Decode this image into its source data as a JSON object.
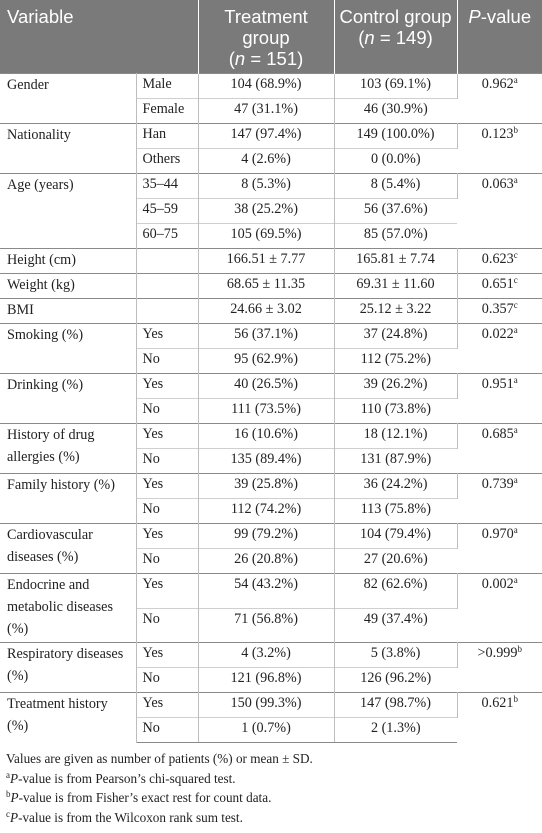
{
  "header": {
    "variable": "Variable",
    "treatment": "Treatment group",
    "treatment_n": "n",
    "treatment_count": " = 151)",
    "control": "Control group",
    "control_n": "n",
    "control_count": " = 149)",
    "pvalue_p": "P",
    "pvalue_rest": "-value"
  },
  "rows": [
    {
      "variable": "Gender",
      "sub": [
        {
          "label": "Male",
          "t": "104 (68.9%)",
          "c": "103 (69.1%)"
        },
        {
          "label": "Female",
          "t": "47 (31.1%)",
          "c": "46 (30.9%)"
        }
      ],
      "p": "0.962",
      "sup": "a"
    },
    {
      "variable": "Nationality",
      "sub": [
        {
          "label": "Han",
          "t": "147 (97.4%)",
          "c": "149 (100.0%)"
        },
        {
          "label": "Others",
          "t": "4 (2.6%)",
          "c": "0 (0.0%)"
        }
      ],
      "p": "0.123",
      "sup": "b"
    },
    {
      "variable": "Age (years)",
      "sub": [
        {
          "label": "35–44",
          "t": "8 (5.3%)",
          "c": "8 (5.4%)"
        },
        {
          "label": "45–59",
          "t": "38 (25.2%)",
          "c": "56 (37.6%)"
        },
        {
          "label": "60–75",
          "t": "105 (69.5%)",
          "c": "85 (57.0%)"
        }
      ],
      "p": "0.063",
      "sup": "a"
    },
    {
      "variable": "Height (cm)",
      "sub": [
        {
          "label": "",
          "t": "166.51 ± 7.77",
          "c": "165.81 ± 7.74"
        }
      ],
      "p": "0.623",
      "sup": "c"
    },
    {
      "variable": "Weight (kg)",
      "sub": [
        {
          "label": "",
          "t": "68.65 ± 11.35",
          "c": "69.31 ± 11.60"
        }
      ],
      "p": "0.651",
      "sup": "c"
    },
    {
      "variable": "BMI",
      "sub": [
        {
          "label": "",
          "t": "24.66 ± 3.02",
          "c": "25.12 ± 3.22"
        }
      ],
      "p": "0.357",
      "sup": "c"
    },
    {
      "variable": "Smoking (%)",
      "sub": [
        {
          "label": "Yes",
          "t": "56 (37.1%)",
          "c": "37 (24.8%)"
        },
        {
          "label": "No",
          "t": "95 (62.9%)",
          "c": "112 (75.2%)"
        }
      ],
      "p": "0.022",
      "sup": "a"
    },
    {
      "variable": "Drinking (%)",
      "sub": [
        {
          "label": "Yes",
          "t": "40 (26.5%)",
          "c": "39 (26.2%)"
        },
        {
          "label": "No",
          "t": "111 (73.5%)",
          "c": "110 (73.8%)"
        }
      ],
      "p": "0.951",
      "sup": "a"
    },
    {
      "variable": "History of drug allergies (%)",
      "sub": [
        {
          "label": "Yes",
          "t": "16 (10.6%)",
          "c": "18 (12.1%)"
        },
        {
          "label": "No",
          "t": "135 (89.4%)",
          "c": "131 (87.9%)"
        }
      ],
      "p": "0.685",
      "sup": "a"
    },
    {
      "variable": "Family history (%)",
      "sub": [
        {
          "label": "Yes",
          "t": "39 (25.8%)",
          "c": "36 (24.2%)"
        },
        {
          "label": "No",
          "t": "112 (74.2%)",
          "c": "113 (75.8%)"
        }
      ],
      "p": "0.739",
      "sup": "a"
    },
    {
      "variable": "Cardiovascular diseases (%)",
      "sub": [
        {
          "label": "Yes",
          "t": "99 (79.2%)",
          "c": "104 (79.4%)"
        },
        {
          "label": "No",
          "t": "26 (20.8%)",
          "c": "27 (20.6%)"
        }
      ],
      "p": "0.970",
      "sup": "a"
    },
    {
      "variable": "Endocrine and metabolic diseases (%)",
      "sub": [
        {
          "label": "Yes",
          "t": "54 (43.2%)",
          "c": "82 (62.6%)"
        },
        {
          "label": "No",
          "t": "71 (56.8%)",
          "c": "49 (37.4%)"
        }
      ],
      "p": "0.002",
      "sup": "a"
    },
    {
      "variable": "Respiratory diseases (%)",
      "sub": [
        {
          "label": "Yes",
          "t": "4 (3.2%)",
          "c": "5 (3.8%)"
        },
        {
          "label": "No",
          "t": "121 (96.8%)",
          "c": "126 (96.2%)"
        }
      ],
      "p": ">0.999",
      "sup": "b"
    },
    {
      "variable": "Treatment history (%)",
      "sub": [
        {
          "label": "Yes",
          "t": "150 (99.3%)",
          "c": "147 (98.7%)"
        },
        {
          "label": "No",
          "t": "1 (0.7%)",
          "c": "2 (1.3%)"
        }
      ],
      "p": "0.621",
      "sup": "b"
    }
  ],
  "footnotes": {
    "main": "Values are given as number of patients (%) or mean ± SD.",
    "a": {
      "mark": "a",
      "p": "P",
      "text": "-value is from Pearson’s chi-squared test."
    },
    "b": {
      "mark": "b",
      "p": "P",
      "text": "-value is from Fisher’s exact rest for count data."
    },
    "c": {
      "mark": "c",
      "p": "P",
      "text": "-value is from the Wilcoxon rank sum test."
    }
  }
}
